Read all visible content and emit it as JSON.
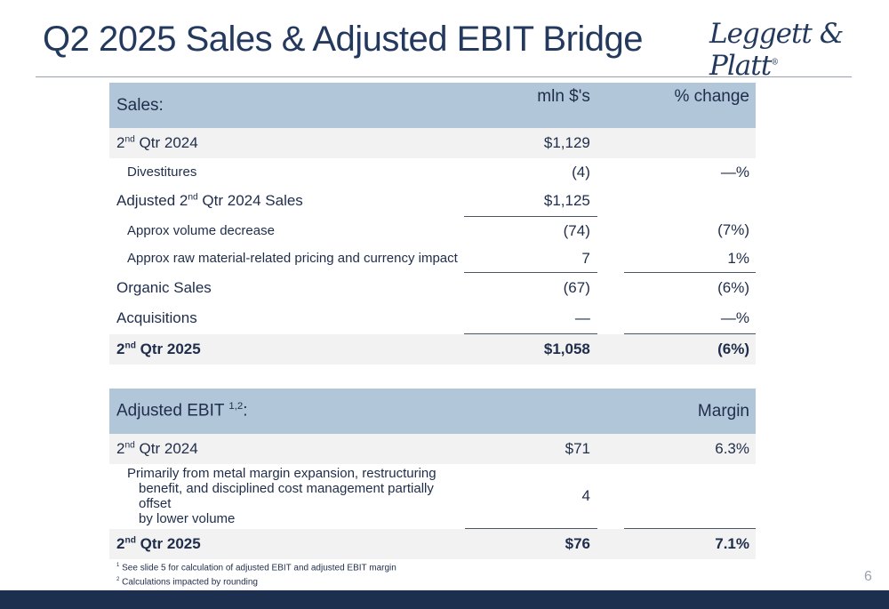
{
  "title": "Q2 2025 Sales & Adjusted EBIT Bridge",
  "logo": "Leggett & Platt",
  "logo_mark": "®",
  "sales": {
    "header": {
      "label": "Sales:",
      "col2": "mln $'s",
      "col3": "% change"
    },
    "rows": [
      {
        "label_pre": "2",
        "label_sup": "nd",
        "label_post": " Qtr 2024",
        "value": "$1,129",
        "pct": ""
      },
      {
        "label": "Divestitures",
        "value": "(4)",
        "pct": "—%"
      },
      {
        "label_pre": "Adjusted 2",
        "label_sup": "nd",
        "label_post": " Qtr 2024 Sales",
        "value": "$1,125",
        "pct": ""
      },
      {
        "label": "Approx volume decrease",
        "value": "(74)",
        "pct": "(7%)"
      },
      {
        "label": "Approx raw material-related pricing and currency impact",
        "value": "7",
        "pct": "1%"
      },
      {
        "label": "Organic Sales",
        "value": "(67)",
        "pct": "(6%)"
      },
      {
        "label": "Acquisitions",
        "value": "—",
        "pct": "—%"
      },
      {
        "label_pre": "2",
        "label_sup": "nd",
        "label_post": " Qtr 2025",
        "value": "$1,058",
        "pct": "(6%)"
      }
    ]
  },
  "ebit": {
    "header": {
      "label": "Adjusted EBIT ",
      "label_sup": "1,2",
      "label_post": ":",
      "col3": "Margin"
    },
    "rows": [
      {
        "label_pre": "2",
        "label_sup": "nd",
        "label_post": " Qtr 2024",
        "value": "$71",
        "pct": "6.3%"
      },
      {
        "label_line1": "Primarily from metal margin expansion, restructuring",
        "label_line2": "benefit, and disciplined cost management partially offset",
        "label_line3": "by lower volume",
        "value": "4",
        "pct": ""
      },
      {
        "label_pre": "2",
        "label_sup": "nd",
        "label_post": " Qtr 2025",
        "value": "$76",
        "pct": "7.1%"
      }
    ]
  },
  "footnotes": {
    "fn1_mark": "1",
    "fn1": " See slide 5 for calculation of adjusted EBIT and adjusted EBIT margin",
    "fn2_mark": "2",
    "fn2": " Calculations impacted by rounding"
  },
  "page_number": "6"
}
